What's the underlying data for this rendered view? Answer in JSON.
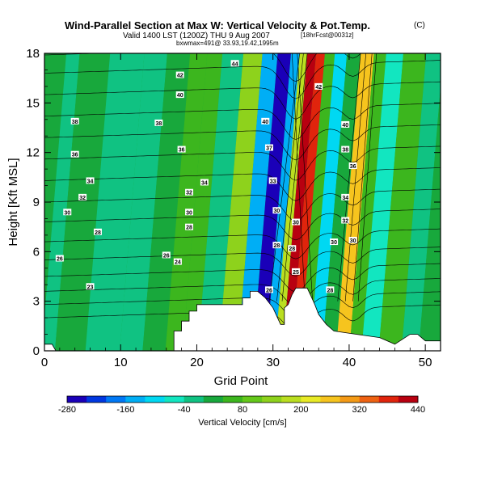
{
  "chart_data": {
    "type": "heatmap",
    "title": "Wind-Parallel Section at Max W: Vertical Velocity & Pot.Temp.",
    "title_mark": "(C)",
    "subtitle": "Valid 1400 LST (1200Z) THU 9 Aug 2007",
    "subtitle_note": "[18hrFcst@0031z]",
    "subtitle2": "bxwmax=491@ 33.93,19.42,1995m",
    "xlabel": "Grid Point",
    "ylabel": "Height [Kft MSL]",
    "xlim": [
      0,
      52
    ],
    "ylim": [
      0,
      18
    ],
    "x_ticks": [
      "0",
      "10",
      "20",
      "30",
      "40",
      "50"
    ],
    "y_ticks": [
      "0",
      "3",
      "6",
      "9",
      "12",
      "15",
      "18"
    ],
    "colorbar": {
      "label": "Vertical Velocity [cm/s]",
      "ticks": [
        "-280",
        "-160",
        "-40",
        "80",
        "200",
        "320",
        "440"
      ],
      "range": [
        -280,
        440
      ],
      "step": 40
    },
    "velocity_bands": [
      {
        "x_center": 0.5,
        "value": 0
      },
      {
        "x_center": 2,
        "value": -20
      },
      {
        "x_center": 4,
        "value": 20
      },
      {
        "x_center": 10,
        "value": -40
      },
      {
        "x_center": 13,
        "value": -20
      },
      {
        "x_center": 16,
        "value": 30
      },
      {
        "x_center": 19,
        "value": 50
      },
      {
        "x_center": 20.5,
        "value": 70
      },
      {
        "x_center": 23,
        "value": -30
      },
      {
        "x_center": 26,
        "value": 130
      },
      {
        "x_center": 28,
        "value": -150
      },
      {
        "x_center": 30,
        "value": -280
      },
      {
        "x_center": 31.5,
        "value": -140
      },
      {
        "x_center": 32.3,
        "value": 180
      },
      {
        "x_center": 33.5,
        "value": 420
      },
      {
        "x_center": 34.6,
        "value": 360
      },
      {
        "x_center": 35.8,
        "value": 40
      },
      {
        "x_center": 37.2,
        "value": -120
      },
      {
        "x_center": 39,
        "value": 20
      },
      {
        "x_center": 40.8,
        "value": 240
      },
      {
        "x_center": 42.5,
        "value": 70
      },
      {
        "x_center": 44,
        "value": -50
      },
      {
        "x_center": 47,
        "value": 40
      },
      {
        "x_center": 50,
        "value": -20
      },
      {
        "x_center": 51.5,
        "value": 30
      }
    ],
    "terrain": [
      {
        "x": 0,
        "y": 0.4
      },
      {
        "x": 1,
        "y": 0.4
      },
      {
        "x": 1.5,
        "y": 0
      },
      {
        "x": 17,
        "y": 0
      },
      {
        "x": 17,
        "y": 1.2
      },
      {
        "x": 18,
        "y": 1.2
      },
      {
        "x": 18,
        "y": 1.8
      },
      {
        "x": 19,
        "y": 1.8
      },
      {
        "x": 19,
        "y": 2.4
      },
      {
        "x": 20,
        "y": 2.4
      },
      {
        "x": 20,
        "y": 2.8
      },
      {
        "x": 26,
        "y": 2.8
      },
      {
        "x": 26,
        "y": 3.2
      },
      {
        "x": 27,
        "y": 3.2
      },
      {
        "x": 27,
        "y": 3.6
      },
      {
        "x": 28,
        "y": 3.6
      },
      {
        "x": 29,
        "y": 3.2
      },
      {
        "x": 30,
        "y": 2.6
      },
      {
        "x": 31,
        "y": 1.6
      },
      {
        "x": 31.5,
        "y": 1.6
      },
      {
        "x": 31.5,
        "y": 2.6
      },
      {
        "x": 32,
        "y": 2.8
      },
      {
        "x": 32.5,
        "y": 3.4
      },
      {
        "x": 33,
        "y": 3.8
      },
      {
        "x": 34.5,
        "y": 3.8
      },
      {
        "x": 35,
        "y": 3.3
      },
      {
        "x": 35.5,
        "y": 2.8
      },
      {
        "x": 36,
        "y": 2.2
      },
      {
        "x": 37,
        "y": 1.6
      },
      {
        "x": 38,
        "y": 1.2
      },
      {
        "x": 41,
        "y": 1.0
      },
      {
        "x": 44,
        "y": 0.8
      },
      {
        "x": 46,
        "y": 0.4
      },
      {
        "x": 48,
        "y": 1.0
      },
      {
        "x": 49,
        "y": 1.0
      },
      {
        "x": 50,
        "y": 0.6
      },
      {
        "x": 51,
        "y": 0.6
      },
      {
        "x": 52,
        "y": 0.6
      }
    ],
    "theta_contours": {
      "min": 23,
      "max": 44,
      "y_at_left": [
        2.0,
        2.8,
        3.6,
        4.5,
        5.5,
        6.6,
        7.8,
        9.0,
        10.3,
        11.6,
        12.9,
        14.2,
        15.5,
        16.8,
        17.9
      ],
      "labels": [
        {
          "text": "44",
          "x": 25,
          "y": 17.4
        },
        {
          "text": "42",
          "x": 17.8,
          "y": 16.7
        },
        {
          "text": "40",
          "x": 17.8,
          "y": 15.5
        },
        {
          "text": "38",
          "x": 4,
          "y": 13.9
        },
        {
          "text": "38",
          "x": 15,
          "y": 13.8
        },
        {
          "text": "36",
          "x": 4,
          "y": 11.9
        },
        {
          "text": "36",
          "x": 18,
          "y": 12.2
        },
        {
          "text": "34",
          "x": 6,
          "y": 10.3
        },
        {
          "text": "34",
          "x": 21,
          "y": 10.2
        },
        {
          "text": "32",
          "x": 5,
          "y": 9.3
        },
        {
          "text": "32",
          "x": 19,
          "y": 9.6
        },
        {
          "text": "30",
          "x": 3,
          "y": 8.4
        },
        {
          "text": "30",
          "x": 19,
          "y": 8.4
        },
        {
          "text": "28",
          "x": 7,
          "y": 7.2
        },
        {
          "text": "28",
          "x": 19,
          "y": 7.5
        },
        {
          "text": "26",
          "x": 2,
          "y": 5.6
        },
        {
          "text": "26",
          "x": 16,
          "y": 5.8
        },
        {
          "text": "24",
          "x": 17.5,
          "y": 5.4
        },
        {
          "text": "23",
          "x": 6,
          "y": 3.9
        },
        {
          "text": "42",
          "x": 36,
          "y": 16.0
        },
        {
          "text": "40",
          "x": 39.5,
          "y": 13.7
        },
        {
          "text": "38",
          "x": 39.5,
          "y": 12.2
        },
        {
          "text": "36",
          "x": 40.5,
          "y": 11.2
        },
        {
          "text": "34",
          "x": 39.5,
          "y": 9.3
        },
        {
          "text": "32",
          "x": 39.5,
          "y": 7.9
        },
        {
          "text": "30",
          "x": 38,
          "y": 6.6
        },
        {
          "text": "30",
          "x": 40.5,
          "y": 6.7
        },
        {
          "text": "28",
          "x": 37.5,
          "y": 3.7
        },
        {
          "text": "40",
          "x": 29,
          "y": 13.9
        },
        {
          "text": "37",
          "x": 29.5,
          "y": 12.3
        },
        {
          "text": "33",
          "x": 30,
          "y": 10.3
        },
        {
          "text": "30",
          "x": 30.5,
          "y": 8.5
        },
        {
          "text": "28",
          "x": 30.5,
          "y": 6.4
        },
        {
          "text": "26",
          "x": 29.5,
          "y": 3.7
        },
        {
          "text": "30",
          "x": 33,
          "y": 7.8
        },
        {
          "text": "28",
          "x": 32.5,
          "y": 6.2
        },
        {
          "text": "25",
          "x": 33,
          "y": 4.8
        }
      ]
    }
  }
}
